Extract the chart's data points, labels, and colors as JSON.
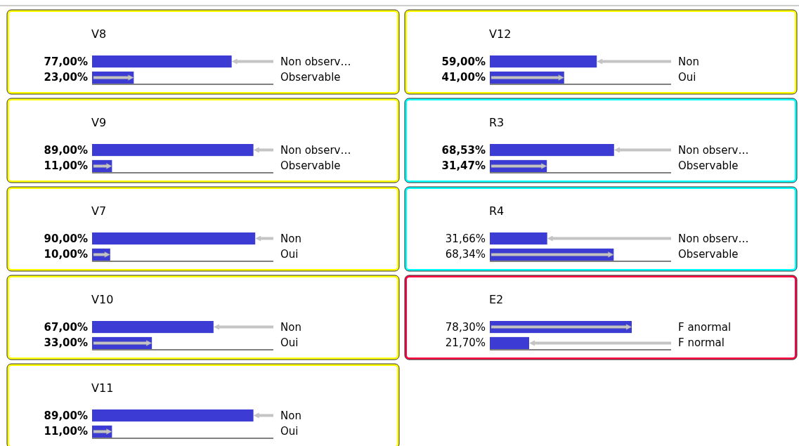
{
  "chart_data": [
    {
      "type": "bar",
      "orientation": "horizontal",
      "title": "V8",
      "categories": [
        "Non observ…",
        "Observable"
      ],
      "values": [
        77,
        23
      ],
      "value_labels": [
        "77,00%",
        "23,00%"
      ],
      "color": "#3c3cd4",
      "xlim": [
        0,
        100
      ]
    },
    {
      "type": "bar",
      "orientation": "horizontal",
      "title": "V12",
      "categories": [
        "Non",
        "Oui"
      ],
      "values": [
        59,
        41
      ],
      "value_labels": [
        "59,00%",
        "41,00%"
      ],
      "color": "#3c3cd4",
      "xlim": [
        0,
        100
      ]
    },
    {
      "type": "bar",
      "orientation": "horizontal",
      "title": "V9",
      "categories": [
        "Non observ…",
        "Observable"
      ],
      "values": [
        89,
        11
      ],
      "value_labels": [
        "89,00%",
        "11,00%"
      ],
      "color": "#3c3cd4",
      "xlim": [
        0,
        100
      ]
    },
    {
      "type": "bar",
      "orientation": "horizontal",
      "title": "R3",
      "categories": [
        "Non observ…",
        "Observable"
      ],
      "values": [
        68.53,
        31.47
      ],
      "value_labels": [
        "68,53%",
        "31,47%"
      ],
      "color": "#3c3cd4",
      "xlim": [
        0,
        100
      ]
    },
    {
      "type": "bar",
      "orientation": "horizontal",
      "title": "V7",
      "categories": [
        "Non",
        "Oui"
      ],
      "values": [
        90,
        10
      ],
      "value_labels": [
        "90,00%",
        "10,00%"
      ],
      "color": "#3c3cd4",
      "xlim": [
        0,
        100
      ]
    },
    {
      "type": "bar",
      "orientation": "horizontal",
      "title": "R4",
      "categories": [
        "Non observ…",
        "Observable"
      ],
      "values": [
        31.66,
        68.34
      ],
      "value_labels": [
        "31,66%",
        "68,34%"
      ],
      "color": "#3c3cd4",
      "xlim": [
        0,
        100
      ]
    },
    {
      "type": "bar",
      "orientation": "horizontal",
      "title": "V10",
      "categories": [
        "Non",
        "Oui"
      ],
      "values": [
        67,
        33
      ],
      "value_labels": [
        "67,00%",
        "33,00%"
      ],
      "color": "#3c3cd4",
      "xlim": [
        0,
        100
      ]
    },
    {
      "type": "bar",
      "orientation": "horizontal",
      "title": "E2",
      "categories": [
        "F anormal",
        "F normal"
      ],
      "values": [
        78.3,
        21.7
      ],
      "value_labels": [
        "78,30%",
        "21,70%"
      ],
      "color": "#3c3cd4",
      "xlim": [
        0,
        100
      ]
    },
    {
      "type": "bar",
      "orientation": "horizontal",
      "title": "V11",
      "categories": [
        "Non",
        "Oui"
      ],
      "values": [
        89,
        11
      ],
      "value_labels": [
        "89,00%",
        "11,00%"
      ],
      "color": "#3c3cd4",
      "xlim": [
        0,
        100
      ]
    }
  ]
}
